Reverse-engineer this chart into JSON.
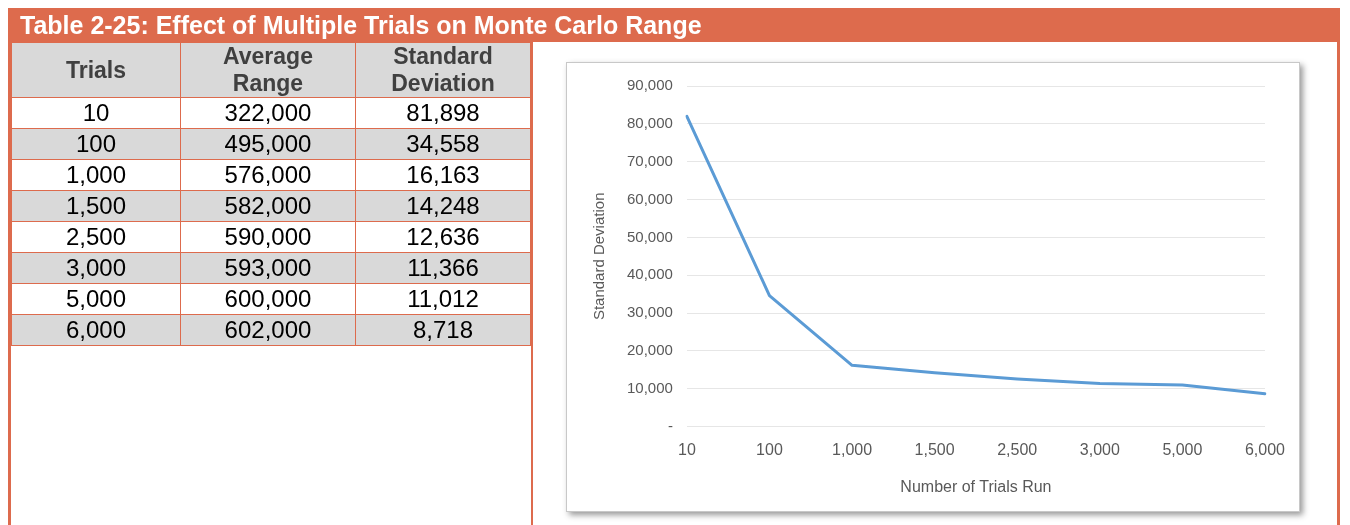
{
  "chart_data": [
    {
      "type": "other",
      "title": "Table 2-25: Effect of Multiple Trials on Monte Carlo Range",
      "xlabel": "Trials",
      "categories": [
        "10",
        "100",
        "1,000",
        "1,500",
        "2,500",
        "3,000",
        "5,000",
        "6,000"
      ],
      "series": [
        {
          "name": "Average Range",
          "values": [
            322000,
            495000,
            576000,
            582000,
            590000,
            593000,
            600000,
            602000
          ],
          "value_labels": [
            "322,000",
            "495,000",
            "576,000",
            "582,000",
            "590,000",
            "593,000",
            "600,000",
            "602,000"
          ]
        },
        {
          "name": "Standard Deviation",
          "values": [
            81898,
            34558,
            16163,
            14248,
            12636,
            11366,
            11012,
            8718
          ],
          "value_labels": [
            "81,898",
            "34,558",
            "16,163",
            "14,248",
            "12,636",
            "11,366",
            "11,012",
            "8,718"
          ]
        }
      ]
    },
    {
      "type": "line",
      "xlabel": "Number of Trials Run",
      "ylabel": "Standard Deviation",
      "categories": [
        "10",
        "100",
        "1,000",
        "1,500",
        "2,500",
        "3,000",
        "5,000",
        "6,000"
      ],
      "series": [
        {
          "color": "#5b9bd5",
          "values": [
            82000,
            34600,
            16200,
            14200,
            12600,
            11400,
            11000,
            8700
          ]
        }
      ],
      "ylim": [
        0,
        90000
      ],
      "yticks": [
        {
          "value": 0,
          "label": "-"
        },
        {
          "value": 10000,
          "label": "10,000"
        },
        {
          "value": 20000,
          "label": "20,000"
        },
        {
          "value": 30000,
          "label": "30,000"
        },
        {
          "value": 40000,
          "label": "40,000"
        },
        {
          "value": 50000,
          "label": "50,000"
        },
        {
          "value": 60000,
          "label": "60,000"
        },
        {
          "value": 70000,
          "label": "70,000"
        },
        {
          "value": 80000,
          "label": "80,000"
        },
        {
          "value": 90000,
          "label": "90,000"
        }
      ],
      "grid": "y",
      "legend": false,
      "marker": "none",
      "line_style": "solid"
    }
  ]
}
